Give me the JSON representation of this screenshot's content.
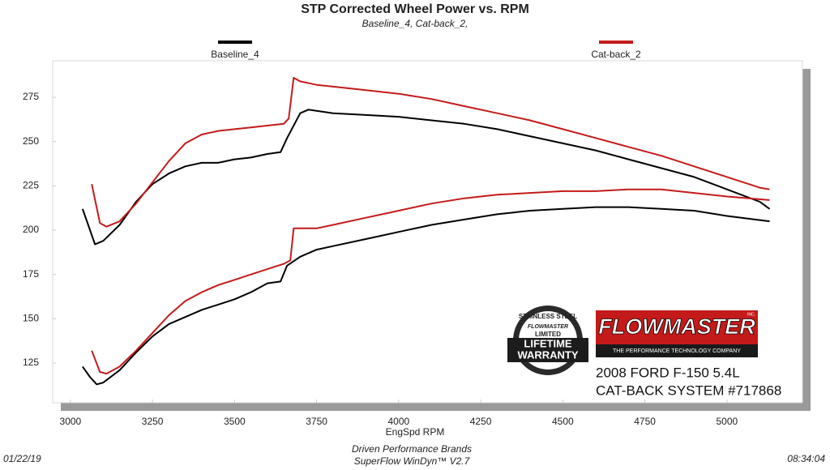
{
  "chart_data": {
    "type": "line",
    "title": "STP Corrected Wheel Power vs. RPM",
    "subtitle": "Baseline_4, Cat-back_2,",
    "x_label": "EngSpd  RPM",
    "xlim": [
      2946,
      5230
    ],
    "ylim": [
      102.6,
      295.6
    ],
    "xticks": [
      3000,
      3250,
      3500,
      3750,
      4000,
      4250,
      4500,
      4750,
      5000
    ],
    "yticks": [
      125,
      150,
      175,
      200,
      225,
      250,
      275
    ],
    "grid": false,
    "series": [
      {
        "name": "Baseline_4",
        "color": "#000000",
        "curves": [
          {
            "x": [
              3037,
              3075,
              3100,
              3150,
              3200,
              3250,
              3300,
              3350,
              3400,
              3450,
              3500,
              3550,
              3600,
              3640,
              3660,
              3700,
              3725,
              3800,
              3900,
              4000,
              4100,
              4200,
              4300,
              4400,
              4500,
              4600,
              4700,
              4800,
              4900,
              5000,
              5100,
              5130
            ],
            "values": [
              212,
              192,
              194,
              203,
              216,
              226,
              232,
              236,
              238,
              238,
              240,
              241,
              243,
              244,
              252,
              266,
              268,
              266,
              265,
              264,
              262,
              260,
              257,
              253,
              249,
              245,
              240,
              235,
              230,
              223,
              216,
              212
            ]
          },
          {
            "x": [
              3037,
              3060,
              3080,
              3100,
              3150,
              3200,
              3250,
              3300,
              3350,
              3400,
              3450,
              3500,
              3550,
              3600,
              3640,
              3660,
              3700,
              3750,
              3800,
              3900,
              4000,
              4100,
              4200,
              4300,
              4400,
              4500,
              4600,
              4700,
              4800,
              4900,
              5000,
              5130
            ],
            "values": [
              123,
              117,
              113,
              114,
              121,
              131,
              140,
              147,
              151,
              155,
              158,
              161,
              165,
              170,
              171,
              180,
              185,
              189,
              191,
              195,
              199,
              203,
              206,
              209,
              211,
              212,
              213,
              213,
              212,
              211,
              208,
              205
            ]
          }
        ]
      },
      {
        "name": "Cat-back_2",
        "color": "#c41a1a",
        "curves": [
          {
            "x": [
              3065,
              3090,
              3110,
              3150,
              3200,
              3250,
              3300,
              3350,
              3400,
              3450,
              3500,
              3550,
              3600,
              3650,
              3665,
              3680,
              3700,
              3750,
              3800,
              3900,
              4000,
              4100,
              4200,
              4300,
              4400,
              4500,
              4600,
              4700,
              4800,
              4900,
              5000,
              5100,
              5130
            ],
            "values": [
              226,
              204,
              202,
              205,
              215,
              227,
              239,
              249,
              254,
              256,
              257,
              258,
              259,
              260,
              263,
              286,
              284,
              282,
              281,
              279,
              277,
              274,
              270,
              266,
              262,
              257,
              252,
              247,
              242,
              236,
              230,
              224,
              223
            ]
          },
          {
            "x": [
              3065,
              3090,
              3110,
              3150,
              3200,
              3250,
              3300,
              3350,
              3400,
              3450,
              3500,
              3550,
              3600,
              3650,
              3670,
              3680,
              3750,
              3800,
              3900,
              4000,
              4100,
              4200,
              4300,
              4400,
              4500,
              4600,
              4700,
              4800,
              4900,
              5000,
              5130
            ],
            "values": [
              132,
              120,
              119,
              123,
              132,
              142,
              152,
              160,
              165,
              169,
              172,
              175,
              178,
              181,
              183,
              201,
              201,
              203,
              207,
              211,
              215,
              218,
              220,
              221,
              222,
              222,
              223,
              223,
              221,
              219,
              217
            ]
          }
        ]
      }
    ]
  },
  "badge": {
    "top": "STAINLESS STEEL",
    "brand": "FLOWMASTER",
    "limited": "LIMITED",
    "line1": "LIFETIME",
    "line2": "WARRANTY"
  },
  "logo": {
    "brand": "FLOWMASTER",
    "inc": "INC.",
    "tagline": "THE PERFORMANCE TECHNOLOGY COMPANY"
  },
  "caption": [
    "2008 FORD F-150 5.4L",
    "CAT-BACK SYSTEM #717868"
  ],
  "footer": {
    "date": "01/22/19",
    "company": "Driven Performance Brands",
    "software": "SuperFlow WinDyn™  V2.7",
    "time": "08:34:04"
  }
}
